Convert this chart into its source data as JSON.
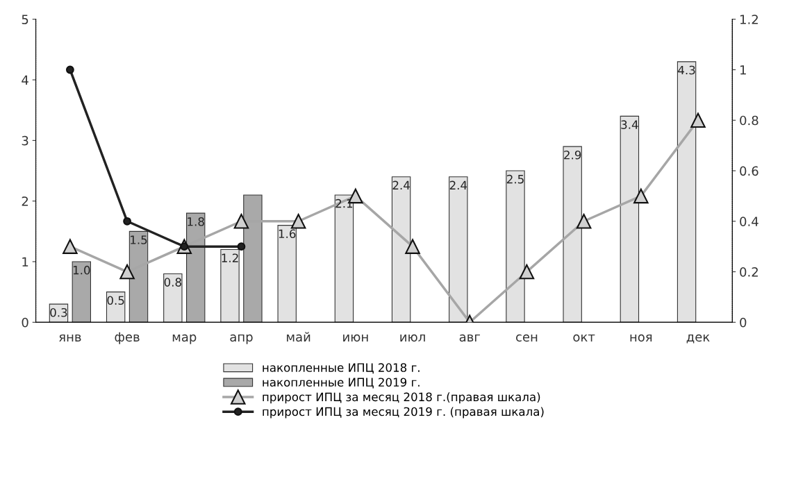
{
  "chart_data": {
    "type": "bar",
    "categories": [
      "янв",
      "фев",
      "мар",
      "апр",
      "май",
      "июн",
      "июл",
      "авг",
      "сен",
      "окт",
      "ноя",
      "дек"
    ],
    "series": [
      {
        "name": "накопленные ИПЦ 2018 г.",
        "color": "#e2e2e2",
        "values": [
          0.3,
          0.5,
          0.8,
          1.2,
          1.6,
          2.1,
          2.4,
          2.4,
          2.5,
          2.9,
          3.4,
          4.3
        ],
        "value_labels": [
          "0.3",
          "0.5",
          "0.8",
          "1.2",
          "1.6",
          "2.1",
          "2.4",
          "2.4",
          "2.5",
          "2.9",
          "3.4",
          "4.3"
        ]
      },
      {
        "name": "накопленные ИПЦ 2019 г.",
        "color": "#a9a9a9",
        "values": [
          1.0,
          1.5,
          1.8,
          2.1,
          null,
          null,
          null,
          null,
          null,
          null,
          null,
          null
        ],
        "value_labels": [
          "1.0",
          "1.5",
          "1.8",
          null,
          null,
          null,
          null,
          null,
          null,
          null,
          null,
          null
        ]
      },
      {
        "name": "прирост ИПЦ за месяц 2018 г.(правая шкала)",
        "type": "line",
        "axis": "y2",
        "color": "#a6a6a6",
        "marker": "triangle",
        "values": [
          0.3,
          0.2,
          0.3,
          0.4,
          0.4,
          0.5,
          0.3,
          0.0,
          0.2,
          0.4,
          0.5,
          0.8
        ]
      },
      {
        "name": "прирост ИПЦ за месяц 2019 г. (правая шкала)",
        "type": "line",
        "axis": "y2",
        "color": "#222222",
        "marker": "circle",
        "values": [
          1.0,
          0.4,
          0.3,
          0.3,
          null,
          null,
          null,
          null,
          null,
          null,
          null,
          null
        ]
      }
    ],
    "ylim": [
      0,
      5
    ],
    "yticks": [
      0,
      1,
      2,
      3,
      4,
      5
    ],
    "y2lim": [
      0,
      1.2
    ],
    "y2ticks": [
      0,
      0.2,
      0.4,
      0.6,
      0.8,
      1,
      1.2
    ],
    "grid": false,
    "legend": "bottom",
    "line_style": "solid"
  }
}
